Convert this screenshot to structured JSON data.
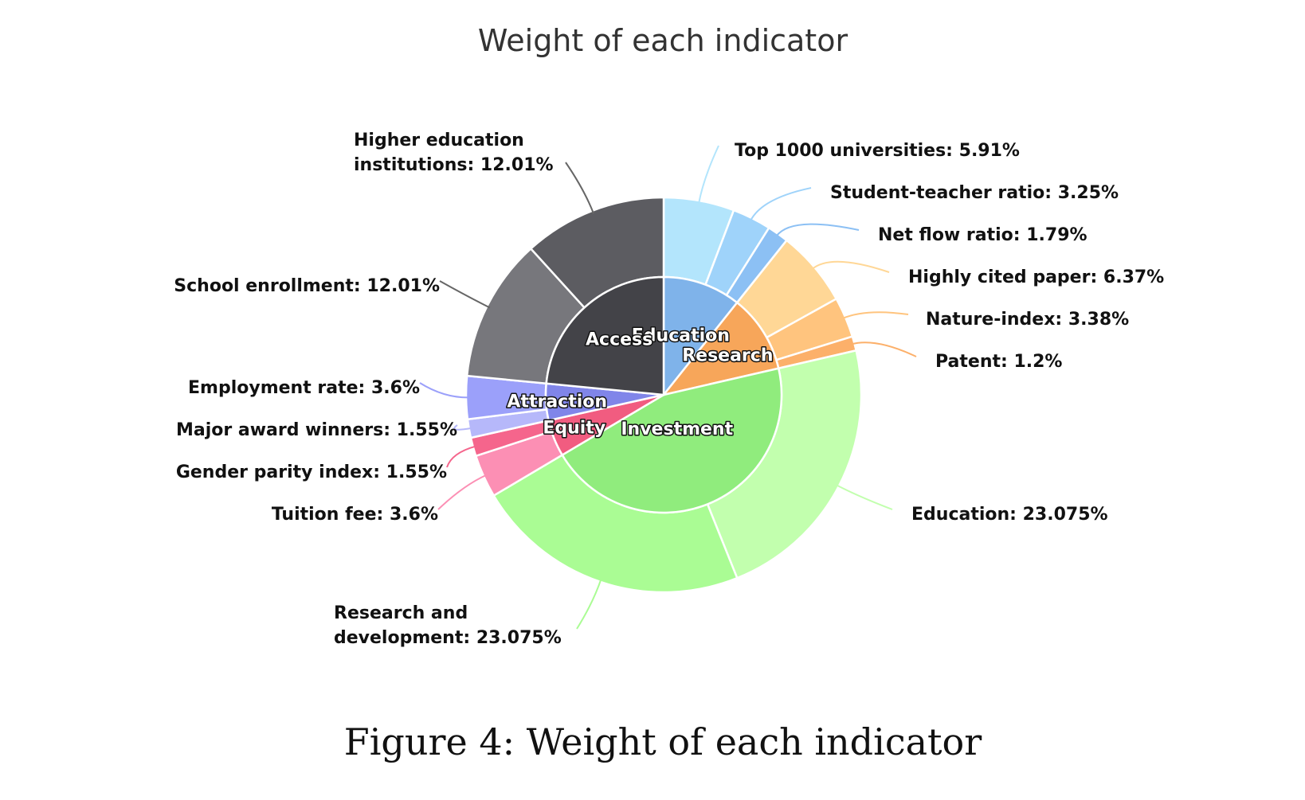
{
  "chart_data": {
    "type": "pie",
    "variant": "nested-donut",
    "title": "Weight of each indicator",
    "caption": "Figure 4: Weight of each indicator",
    "inner": [
      {
        "name": "Education",
        "value": 10.95,
        "color": "#7fb3ea"
      },
      {
        "name": "Research",
        "value": 10.95,
        "color": "#f7a65a"
      },
      {
        "name": "Investment",
        "value": 46.15,
        "color": "#90ec7d"
      },
      {
        "name": "Equity",
        "value": 5.15,
        "color": "#f15c80"
      },
      {
        "name": "Attraction",
        "value": 5.15,
        "color": "#8085e9"
      },
      {
        "name": "Access",
        "value": 24.02,
        "color": "#434348"
      }
    ],
    "outer": [
      {
        "name": "Top 1000 universities",
        "value": 5.91,
        "label": "Top 1000 universities: 5.91%",
        "color": "#b3e5fc"
      },
      {
        "name": "Student-teacher ratio",
        "value": 3.25,
        "label": "Student-teacher ratio: 3.25%",
        "color": "#9fd3fa"
      },
      {
        "name": "Net flow ratio",
        "value": 1.79,
        "label": "Net flow ratio: 1.79%",
        "color": "#8cc0f4"
      },
      {
        "name": "Highly cited paper",
        "value": 6.37,
        "label": "Highly cited paper: 6.37%",
        "color": "#ffd796"
      },
      {
        "name": "Nature-index",
        "value": 3.38,
        "label": "Nature-index: 3.38%",
        "color": "#ffc47e"
      },
      {
        "name": "Patent",
        "value": 1.2,
        "label": "Patent: 1.2%",
        "color": "#fcb06a"
      },
      {
        "name": "Education",
        "value": 23.075,
        "label": "Education: 23.075%",
        "color": "#c2ffae"
      },
      {
        "name": "Research and development",
        "value": 23.075,
        "label": "Research and development: 23.075%",
        "label_lines": [
          "Research and",
          "development: 23.075%"
        ],
        "color": "#aafc94"
      },
      {
        "name": "Tuition fee",
        "value": 3.6,
        "label": "Tuition fee: 3.6%",
        "color": "#fc8fb4"
      },
      {
        "name": "Gender parity index",
        "value": 1.55,
        "label": "Gender parity index: 1.55%",
        "color": "#f5658c"
      },
      {
        "name": "Major award winners",
        "value": 1.55,
        "label": "Major award winners: 1.55%",
        "color": "#b6b8fa"
      },
      {
        "name": "Employment rate",
        "value": 3.6,
        "label": "Employment rate: 3.6%",
        "color": "#9ba0fa"
      },
      {
        "name": "School enrollment",
        "value": 12.01,
        "label": "School enrollment: 12.01%",
        "color": "#77777c"
      },
      {
        "name": "Higher education institutions",
        "value": 12.01,
        "label": "Higher education institutions: 12.01%",
        "label_lines": [
          "Higher education",
          "institutions: 12.01%"
        ],
        "color": "#5c5c61"
      }
    ],
    "start": "12 o'clock",
    "direction": "clockwise",
    "legend": "none"
  }
}
